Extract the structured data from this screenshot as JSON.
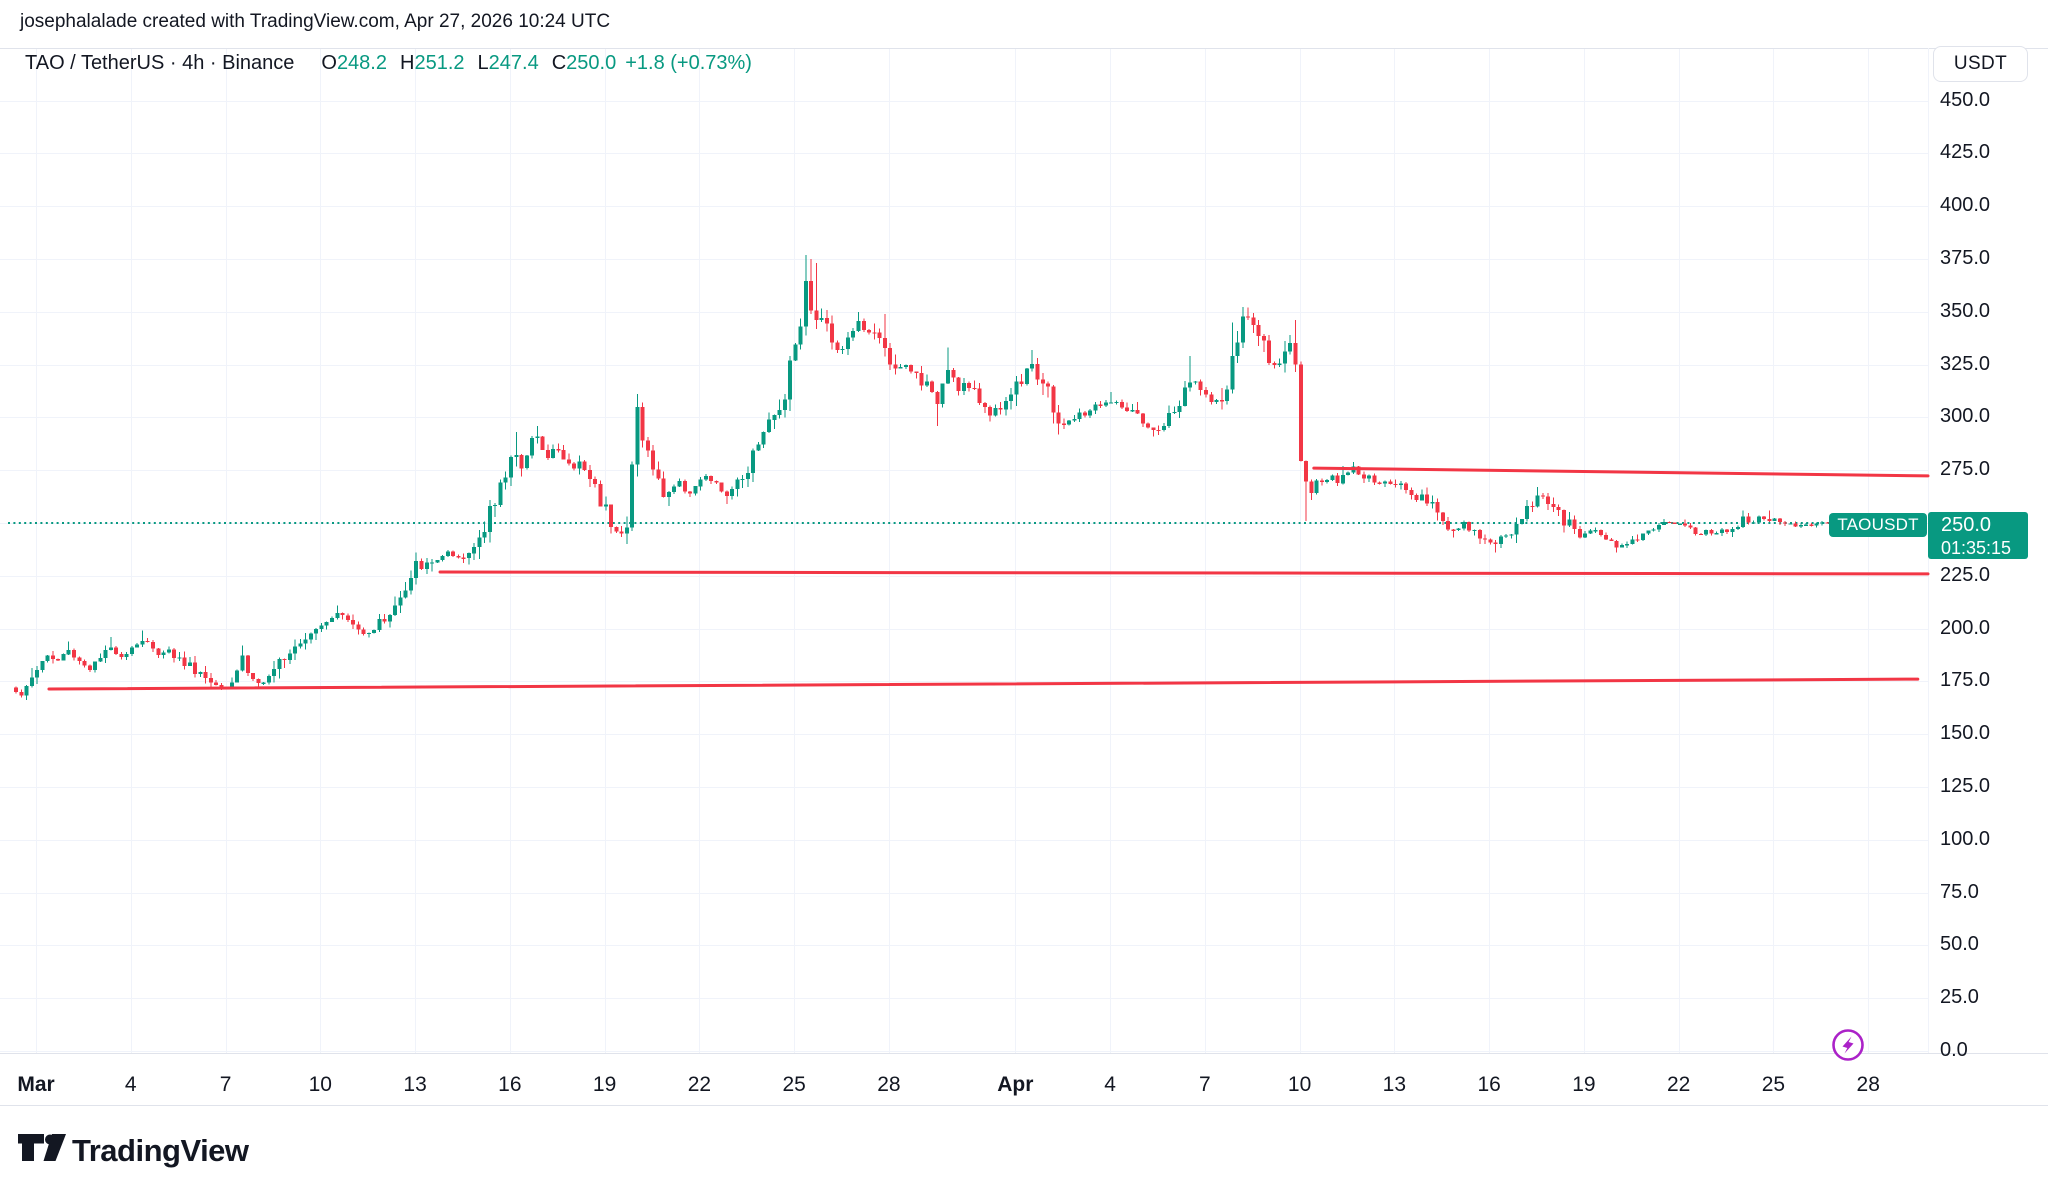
{
  "credit_line": "josephalalade created with TradingView.com, Apr 27, 2026 10:24 UTC",
  "legend": {
    "symbol": "TAO / TetherUS · 4h · Binance",
    "o_label": "O",
    "o_value": "248.2",
    "h_label": "H",
    "h_value": "251.2",
    "l_label": "L",
    "l_value": "247.4",
    "c_label": "C",
    "c_value": "250.0",
    "change": "+1.8 (+0.73%)"
  },
  "colors": {
    "up": "#089981",
    "down": "#f23645",
    "grid": "#f0f3fa",
    "border": "#e0e3eb",
    "text": "#131722",
    "trendline": "#f23645",
    "current_price": "#089981",
    "flash": "#ab22c8"
  },
  "price_axis": {
    "currency_label": "USDT",
    "tick_min": 0,
    "tick_max": 450,
    "tick_step": 25,
    "tick_labels": [
      "0.0",
      "25.0",
      "50.0",
      "75.0",
      "100.0",
      "125.0",
      "150.0",
      "175.0",
      "200.0",
      "225.0",
      "250.0",
      "275.0",
      "300.0",
      "325.0",
      "350.0",
      "375.0",
      "400.0",
      "425.0",
      "450.0"
    ]
  },
  "time_axis": {
    "labels": [
      {
        "text": "Mar",
        "day": 0,
        "month": true
      },
      {
        "text": "4",
        "day": 3
      },
      {
        "text": "7",
        "day": 6
      },
      {
        "text": "10",
        "day": 9
      },
      {
        "text": "13",
        "day": 12
      },
      {
        "text": "16",
        "day": 15
      },
      {
        "text": "19",
        "day": 18
      },
      {
        "text": "22",
        "day": 21
      },
      {
        "text": "25",
        "day": 24
      },
      {
        "text": "28",
        "day": 27
      },
      {
        "text": "Apr",
        "day": 31,
        "month": true
      },
      {
        "text": "4",
        "day": 34
      },
      {
        "text": "7",
        "day": 37
      },
      {
        "text": "10",
        "day": 40
      },
      {
        "text": "13",
        "day": 43
      },
      {
        "text": "16",
        "day": 46
      },
      {
        "text": "19",
        "day": 49
      },
      {
        "text": "22",
        "day": 52
      },
      {
        "text": "25",
        "day": 55
      },
      {
        "text": "28",
        "day": 58
      }
    ]
  },
  "price_tag": {
    "symbol": "TAOUSDT",
    "price": "250.0",
    "countdown": "01:35:15",
    "value": 250
  },
  "footer": {
    "brand": "TradingView"
  },
  "chart_data": {
    "type": "candlestick",
    "title": "TAO / TetherUS",
    "exchange": "Binance",
    "interval": "4h",
    "quote": "USDT",
    "x_unit": "days_since_Mar_1",
    "start_day": -0.63,
    "candle_step_days": 0.166667,
    "candle_count": 349,
    "ylim": [
      0,
      475
    ],
    "grid": true,
    "current_price_line": 250,
    "last_candle": {
      "open": 248.2,
      "high": 251.2,
      "low": 247.4,
      "close": 250.0
    },
    "close_anchors": [
      [
        -0.63,
        171
      ],
      [
        -0.35,
        169
      ],
      [
        0,
        180
      ],
      [
        0.3,
        188
      ],
      [
        0.65,
        184
      ],
      [
        1.0,
        190
      ],
      [
        1.35,
        185
      ],
      [
        1.7,
        181
      ],
      [
        2.05,
        186
      ],
      [
        2.4,
        191
      ],
      [
        2.75,
        187
      ],
      [
        3.1,
        192
      ],
      [
        3.45,
        195
      ],
      [
        3.8,
        188
      ],
      [
        4.1,
        191
      ],
      [
        4.45,
        186
      ],
      [
        4.8,
        183
      ],
      [
        5.15,
        180
      ],
      [
        5.5,
        175
      ],
      [
        5.9,
        173
      ],
      [
        6.3,
        176
      ],
      [
        6.5,
        189
      ],
      [
        6.75,
        177
      ],
      [
        7.1,
        174
      ],
      [
        7.5,
        176
      ],
      [
        7.8,
        188
      ],
      [
        8.1,
        192
      ],
      [
        8.45,
        196
      ],
      [
        8.8,
        200
      ],
      [
        9.15,
        204
      ],
      [
        9.5,
        207
      ],
      [
        9.75,
        206
      ],
      [
        10.0,
        202
      ],
      [
        10.3,
        198
      ],
      [
        10.6,
        199
      ],
      [
        10.9,
        203
      ],
      [
        11.2,
        208
      ],
      [
        11.5,
        213
      ],
      [
        11.8,
        219
      ],
      [
        12.1,
        232
      ],
      [
        12.35,
        229
      ],
      [
        12.55,
        231
      ],
      [
        12.8,
        234
      ],
      [
        13.05,
        236
      ],
      [
        13.3,
        232
      ],
      [
        13.6,
        233
      ],
      [
        13.85,
        238
      ],
      [
        14.05,
        245
      ],
      [
        14.25,
        252
      ],
      [
        14.4,
        261
      ],
      [
        14.55,
        257
      ],
      [
        14.75,
        268
      ],
      [
        15.0,
        278
      ],
      [
        15.15,
        287
      ],
      [
        15.3,
        282
      ],
      [
        15.45,
        274
      ],
      [
        15.6,
        288
      ],
      [
        15.8,
        291
      ],
      [
        16.0,
        286
      ],
      [
        16.2,
        283
      ],
      [
        16.45,
        286
      ],
      [
        16.7,
        280
      ],
      [
        16.95,
        276
      ],
      [
        17.2,
        278
      ],
      [
        17.45,
        274
      ],
      [
        17.7,
        267
      ],
      [
        17.95,
        259
      ],
      [
        18.2,
        252
      ],
      [
        18.45,
        247
      ],
      [
        18.65,
        244
      ],
      [
        18.75,
        248
      ],
      [
        18.9,
        284
      ],
      [
        19.05,
        306
      ],
      [
        19.25,
        288
      ],
      [
        19.45,
        280
      ],
      [
        19.65,
        270
      ],
      [
        19.9,
        263
      ],
      [
        20.15,
        267
      ],
      [
        20.4,
        269
      ],
      [
        20.65,
        264
      ],
      [
        20.9,
        268
      ],
      [
        21.15,
        272
      ],
      [
        21.4,
        270
      ],
      [
        21.65,
        266
      ],
      [
        21.95,
        262
      ],
      [
        22.2,
        268
      ],
      [
        22.45,
        274
      ],
      [
        22.7,
        284
      ],
      [
        22.95,
        294
      ],
      [
        23.2,
        297
      ],
      [
        23.45,
        301
      ],
      [
        23.65,
        307
      ],
      [
        23.8,
        322
      ],
      [
        24.0,
        334
      ],
      [
        24.18,
        345
      ],
      [
        24.35,
        363
      ],
      [
        24.5,
        354
      ],
      [
        24.68,
        344
      ],
      [
        24.85,
        350
      ],
      [
        25.05,
        341
      ],
      [
        25.25,
        336
      ],
      [
        25.45,
        331
      ],
      [
        25.65,
        336
      ],
      [
        25.85,
        341
      ],
      [
        26.05,
        345
      ],
      [
        26.3,
        340
      ],
      [
        26.55,
        337
      ],
      [
        26.8,
        342
      ],
      [
        27.0,
        324
      ],
      [
        27.25,
        320
      ],
      [
        27.5,
        325
      ],
      [
        27.75,
        321
      ],
      [
        28.0,
        319
      ],
      [
        28.25,
        315
      ],
      [
        28.45,
        308
      ],
      [
        28.6,
        306
      ],
      [
        28.8,
        326
      ],
      [
        29.0,
        320
      ],
      [
        29.2,
        314
      ],
      [
        29.45,
        316
      ],
      [
        29.7,
        311
      ],
      [
        29.95,
        306
      ],
      [
        30.2,
        302
      ],
      [
        30.45,
        304
      ],
      [
        30.7,
        308
      ],
      [
        30.95,
        314
      ],
      [
        31.2,
        318
      ],
      [
        31.5,
        328
      ],
      [
        31.75,
        317
      ],
      [
        32.0,
        312
      ],
      [
        32.2,
        303
      ],
      [
        32.45,
        297
      ],
      [
        32.7,
        298
      ],
      [
        32.95,
        300
      ],
      [
        33.2,
        302
      ],
      [
        33.5,
        305
      ],
      [
        33.8,
        307
      ],
      [
        34.1,
        307
      ],
      [
        34.4,
        305
      ],
      [
        34.7,
        302
      ],
      [
        35.0,
        297
      ],
      [
        35.3,
        293
      ],
      [
        35.55,
        295
      ],
      [
        35.8,
        298
      ],
      [
        36.05,
        303
      ],
      [
        36.3,
        309
      ],
      [
        36.6,
        318
      ],
      [
        36.85,
        315
      ],
      [
        37.1,
        309
      ],
      [
        37.3,
        305
      ],
      [
        37.55,
        309
      ],
      [
        37.8,
        318
      ],
      [
        37.95,
        333
      ],
      [
        38.15,
        345
      ],
      [
        38.35,
        347
      ],
      [
        38.55,
        344
      ],
      [
        38.75,
        337
      ],
      [
        38.95,
        331
      ],
      [
        39.2,
        326
      ],
      [
        39.45,
        322
      ],
      [
        39.6,
        330
      ],
      [
        39.8,
        338
      ],
      [
        39.92,
        309
      ],
      [
        40.05,
        277
      ],
      [
        40.22,
        264
      ],
      [
        40.4,
        268
      ],
      [
        40.6,
        272
      ],
      [
        40.8,
        269
      ],
      [
        41.0,
        273
      ],
      [
        41.2,
        269
      ],
      [
        41.45,
        273
      ],
      [
        41.7,
        276
      ],
      [
        41.95,
        271
      ],
      [
        42.2,
        273
      ],
      [
        42.45,
        269
      ],
      [
        42.7,
        271
      ],
      [
        42.95,
        267
      ],
      [
        43.2,
        269
      ],
      [
        43.45,
        265
      ],
      [
        43.7,
        262
      ],
      [
        43.95,
        263
      ],
      [
        44.2,
        258
      ],
      [
        44.45,
        252
      ],
      [
        44.7,
        249
      ],
      [
        44.95,
        246
      ],
      [
        45.2,
        249
      ],
      [
        45.45,
        246
      ],
      [
        45.7,
        243
      ],
      [
        45.95,
        242
      ],
      [
        46.2,
        240
      ],
      [
        46.5,
        244
      ],
      [
        46.75,
        247
      ],
      [
        47.0,
        251
      ],
      [
        47.3,
        258
      ],
      [
        47.6,
        264
      ],
      [
        47.85,
        261
      ],
      [
        48.1,
        256
      ],
      [
        48.35,
        251
      ],
      [
        48.6,
        248
      ],
      [
        48.85,
        244
      ],
      [
        49.1,
        245
      ],
      [
        49.35,
        247
      ],
      [
        49.6,
        245
      ],
      [
        49.85,
        242
      ],
      [
        50.1,
        238
      ],
      [
        50.35,
        241
      ],
      [
        50.6,
        243
      ],
      [
        50.85,
        245
      ],
      [
        51.1,
        247
      ],
      [
        51.35,
        248
      ],
      [
        51.6,
        250
      ],
      [
        51.85,
        249
      ],
      [
        52.1,
        250
      ],
      [
        52.35,
        248
      ],
      [
        52.6,
        245
      ],
      [
        52.85,
        246
      ],
      [
        53.1,
        245
      ],
      [
        53.35,
        246
      ],
      [
        53.6,
        247
      ],
      [
        53.85,
        249
      ],
      [
        54.05,
        254
      ],
      [
        54.3,
        250
      ],
      [
        54.55,
        252
      ],
      [
        54.8,
        252
      ],
      [
        55.05,
        251
      ],
      [
        55.3,
        249
      ],
      [
        55.55,
        250
      ],
      [
        55.8,
        248
      ],
      [
        56.05,
        249
      ],
      [
        56.3,
        250
      ],
      [
        56.55,
        251
      ],
      [
        56.8,
        249
      ],
      [
        57.05,
        249
      ],
      [
        57.25,
        248.2
      ],
      [
        57.42,
        250
      ]
    ],
    "wick_spikes": [
      {
        "d": -0.35,
        "low": 167
      },
      {
        "d": 1.0,
        "high": 194
      },
      {
        "d": 2.4,
        "high": 196
      },
      {
        "d": 3.45,
        "high": 199
      },
      {
        "d": 5.9,
        "low": 171
      },
      {
        "d": 6.5,
        "high": 192
      },
      {
        "d": 7.1,
        "low": 172
      },
      {
        "d": 9.5,
        "high": 211
      },
      {
        "d": 12.1,
        "high": 236
      },
      {
        "d": 12.5,
        "low": 227
      },
      {
        "d": 15.15,
        "high": 293
      },
      {
        "d": 15.8,
        "high": 296
      },
      {
        "d": 18.65,
        "low": 240
      },
      {
        "d": 19.05,
        "high": 311
      },
      {
        "d": 19.25,
        "high": 307
      },
      {
        "d": 20.0,
        "low": 258
      },
      {
        "d": 21.95,
        "low": 259
      },
      {
        "d": 24.35,
        "high": 377
      },
      {
        "d": 24.5,
        "high": 375
      },
      {
        "d": 24.68,
        "high": 373
      },
      {
        "d": 26.05,
        "high": 350
      },
      {
        "d": 26.8,
        "high": 349
      },
      {
        "d": 28.6,
        "low": 296
      },
      {
        "d": 28.8,
        "high": 333
      },
      {
        "d": 30.2,
        "low": 298
      },
      {
        "d": 31.5,
        "high": 332
      },
      {
        "d": 32.45,
        "low": 292
      },
      {
        "d": 34.1,
        "high": 312
      },
      {
        "d": 35.3,
        "low": 291
      },
      {
        "d": 36.6,
        "high": 329
      },
      {
        "d": 37.95,
        "high": 345
      },
      {
        "d": 38.15,
        "high": 351
      },
      {
        "d": 38.35,
        "high": 352
      },
      {
        "d": 39.8,
        "high": 346
      },
      {
        "d": 40.22,
        "low": 251
      },
      {
        "d": 41.45,
        "high": 277
      },
      {
        "d": 41.7,
        "high": 279
      },
      {
        "d": 44.95,
        "low": 243
      },
      {
        "d": 45.95,
        "low": 240
      },
      {
        "d": 46.2,
        "low": 236
      },
      {
        "d": 47.6,
        "high": 267
      },
      {
        "d": 50.1,
        "low": 236
      },
      {
        "d": 54.05,
        "high": 256
      },
      {
        "d": 54.8,
        "high": 256
      }
    ],
    "trend_lines": [
      {
        "name": "support-175",
        "x1_day": 0.41,
        "price1": 171.4,
        "x2_day": 59.57,
        "price2": 176.1
      },
      {
        "name": "support-228",
        "x1_day": 12.79,
        "price1": 226.8,
        "x2_day": 60.1,
        "price2": 225.9
      },
      {
        "name": "resistance-276",
        "x1_day": 40.45,
        "price1": 276.0,
        "x2_day": 60.2,
        "price2": 272.3
      }
    ]
  }
}
